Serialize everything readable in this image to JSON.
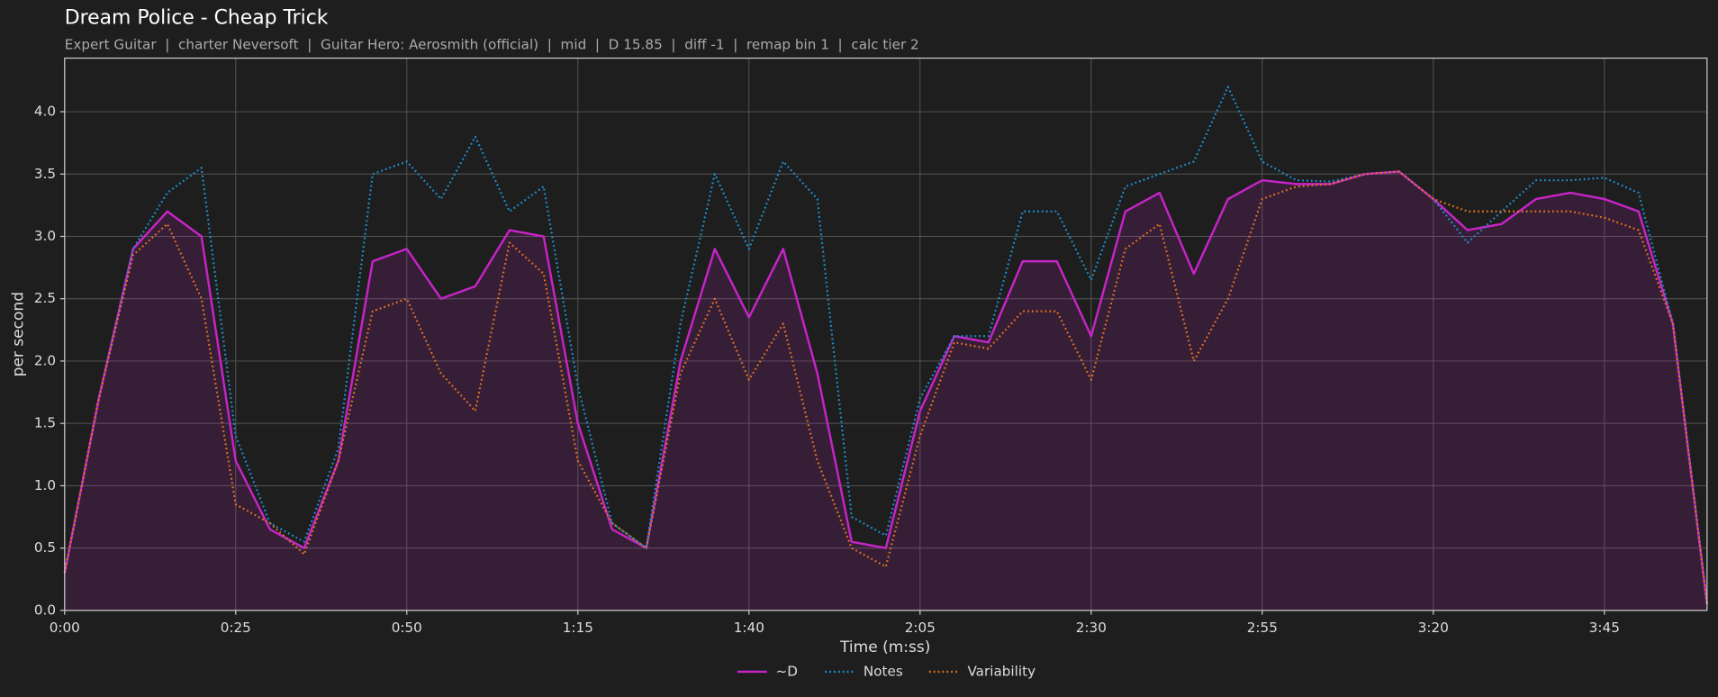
{
  "chart_data": {
    "type": "line",
    "title": "Dream Police - Cheap Trick",
    "subtitle": "Expert Guitar  |  charter Neversoft  |  Guitar Hero: Aerosmith (official)  |  mid  |  D 15.85  |  diff -1  |  remap bin 1  |  calc tier 2",
    "x_label": "Time (m:ss)",
    "y_label": "per second",
    "x": [
      0,
      5,
      10,
      15,
      20,
      25,
      30,
      35,
      40,
      45,
      50,
      55,
      60,
      65,
      70,
      75,
      80,
      85,
      90,
      95,
      100,
      105,
      110,
      115,
      120,
      125,
      130,
      135,
      140,
      145,
      150,
      155,
      160,
      165,
      170,
      175,
      180,
      185,
      190,
      195,
      200,
      205,
      210,
      215,
      220,
      225,
      230,
      235,
      240
    ],
    "series": [
      {
        "name": "~D",
        "color": "#c724c7",
        "style": "solid",
        "fill": true,
        "values": [
          0.3,
          1.7,
          2.9,
          3.2,
          3.0,
          1.2,
          0.65,
          0.5,
          1.2,
          2.8,
          2.9,
          2.5,
          2.6,
          3.05,
          3.0,
          1.5,
          0.65,
          0.5,
          2.0,
          2.9,
          2.35,
          2.9,
          1.9,
          0.55,
          0.5,
          1.6,
          2.2,
          2.15,
          2.8,
          2.8,
          2.2,
          3.2,
          3.35,
          2.7,
          3.3,
          3.45,
          3.42,
          3.42,
          3.5,
          3.52,
          3.3,
          3.05,
          3.1,
          3.3,
          3.35,
          3.3,
          3.2,
          2.3,
          0.05
        ]
      },
      {
        "name": "Notes",
        "color": "#1f8fd0",
        "style": "dotted",
        "values": [
          0.3,
          1.7,
          2.9,
          3.35,
          3.55,
          1.4,
          0.7,
          0.55,
          1.3,
          3.5,
          3.6,
          3.3,
          3.8,
          3.2,
          3.4,
          1.8,
          0.7,
          0.5,
          2.3,
          3.5,
          2.9,
          3.6,
          3.3,
          0.75,
          0.6,
          1.7,
          2.2,
          2.2,
          3.2,
          3.2,
          2.65,
          3.4,
          3.5,
          3.6,
          4.2,
          3.6,
          3.45,
          3.44,
          3.5,
          3.52,
          3.3,
          2.95,
          3.2,
          3.45,
          3.45,
          3.47,
          3.35,
          2.3,
          0.05
        ]
      },
      {
        "name": "Variability",
        "color": "#e0731f",
        "style": "dotted",
        "values": [
          0.3,
          1.7,
          2.85,
          3.1,
          2.5,
          0.85,
          0.7,
          0.45,
          1.2,
          2.4,
          2.5,
          1.9,
          1.6,
          2.95,
          2.7,
          1.2,
          0.7,
          0.5,
          1.9,
          2.5,
          1.85,
          2.3,
          1.2,
          0.5,
          0.35,
          1.4,
          2.15,
          2.1,
          2.4,
          2.4,
          1.85,
          2.9,
          3.1,
          2.0,
          2.5,
          3.3,
          3.4,
          3.42,
          3.5,
          3.52,
          3.3,
          3.2,
          3.2,
          3.2,
          3.2,
          3.15,
          3.05,
          2.3,
          0.05
        ]
      }
    ],
    "xlim": [
      0,
      240
    ],
    "xticks": [
      {
        "value": 0,
        "label": "0:00"
      },
      {
        "value": 25,
        "label": "0:25"
      },
      {
        "value": 50,
        "label": "0:50"
      },
      {
        "value": 75,
        "label": "1:15"
      },
      {
        "value": 100,
        "label": "1:40"
      },
      {
        "value": 125,
        "label": "2:05"
      },
      {
        "value": 150,
        "label": "2:30"
      },
      {
        "value": 175,
        "label": "2:55"
      },
      {
        "value": 200,
        "label": "3:20"
      },
      {
        "value": 225,
        "label": "3:45"
      }
    ],
    "ylim": [
      0,
      4.43
    ],
    "yticks": [
      {
        "value": 0,
        "label": "0.0"
      },
      {
        "value": 0.5,
        "label": "0.5"
      },
      {
        "value": 1,
        "label": "1.0"
      },
      {
        "value": 1.5,
        "label": "1.5"
      },
      {
        "value": 2,
        "label": "2.0"
      },
      {
        "value": 2.5,
        "label": "2.5"
      },
      {
        "value": 3,
        "label": "3.0"
      },
      {
        "value": 3.5,
        "label": "3.5"
      },
      {
        "value": 4,
        "label": "4.0"
      }
    ],
    "grid": true,
    "legend": "bottom"
  }
}
